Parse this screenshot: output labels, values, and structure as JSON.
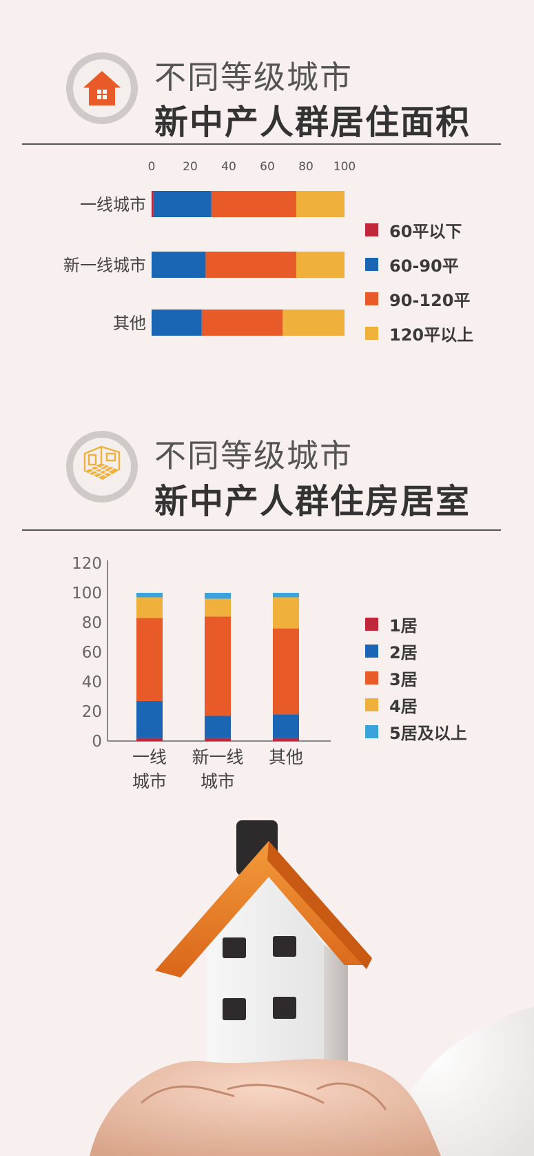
{
  "section1": {
    "title_line1": "不同等级城市",
    "title_line2": "新中产人群居住面积",
    "icon": "house-icon"
  },
  "section2": {
    "title_line1": "不同等级城市",
    "title_line2": "新中产人群住房居室",
    "icon": "room-floorplan-icon"
  },
  "colors": {
    "dark_red": "#c0273a",
    "blue": "#1a66b4",
    "orange": "#e85a28",
    "yellow": "#f0b13c",
    "light_blue": "#3aa3dc",
    "roof": "#e87d1f"
  },
  "chart_data": [
    {
      "type": "bar",
      "orientation": "horizontal",
      "stacked": true,
      "categories": [
        "一线城市",
        "新一线城市",
        "其他"
      ],
      "xlim": [
        0,
        100
      ],
      "x_ticks": [
        "0",
        "20",
        "40",
        "60",
        "80",
        "100"
      ],
      "series": [
        {
          "name": "60平以下",
          "color": "#c0273a",
          "values": [
            1,
            0,
            0
          ]
        },
        {
          "name": "60-90平",
          "color": "#1a66b4",
          "values": [
            30,
            28,
            26
          ]
        },
        {
          "name": "90-120平",
          "color": "#e85a28",
          "values": [
            44,
            47,
            42
          ]
        },
        {
          "name": "120平以上",
          "color": "#f0b13c",
          "values": [
            25,
            25,
            32
          ]
        }
      ],
      "legend": "right"
    },
    {
      "type": "bar",
      "orientation": "vertical",
      "stacked": true,
      "categories": [
        "一线城市",
        "新一线城市",
        "其他"
      ],
      "category_lines": [
        [
          "一线",
          "城市"
        ],
        [
          "新一线",
          "城市"
        ],
        [
          "其他"
        ]
      ],
      "ylim": [
        0,
        120
      ],
      "y_ticks": [
        "0",
        "20",
        "40",
        "60",
        "80",
        "100",
        "120"
      ],
      "series": [
        {
          "name": "1居",
          "color": "#c0273a",
          "values": [
            2,
            2,
            2
          ]
        },
        {
          "name": "2居",
          "color": "#1a66b4",
          "values": [
            25,
            15,
            16
          ]
        },
        {
          "name": "3居",
          "color": "#e85a28",
          "values": [
            56,
            67,
            58
          ]
        },
        {
          "name": "4居",
          "color": "#f0b13c",
          "values": [
            14,
            12,
            21
          ]
        },
        {
          "name": "5居及以上",
          "color": "#3aa3dc",
          "values": [
            3,
            4,
            3
          ]
        }
      ],
      "legend": "right"
    }
  ]
}
